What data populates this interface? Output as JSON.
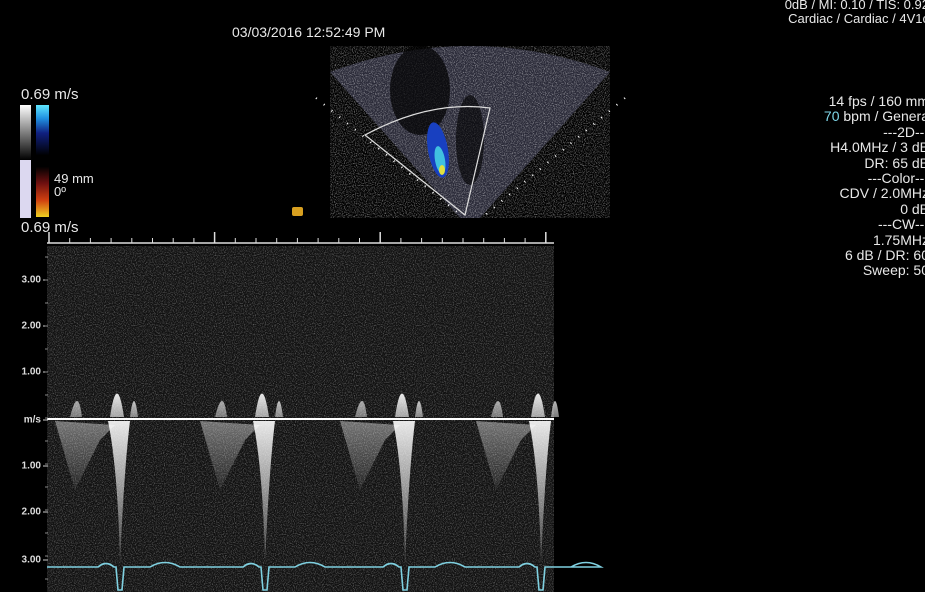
{
  "header": {
    "timestamp": "03/03/2016 12:52:49 PM",
    "system_line1": "0dB / MI: 0.10 / TIS: 0.92",
    "system_line2": "Cardiac / Cardiac / 4V1c"
  },
  "color_scale": {
    "top_label": "0.69 m/s",
    "depth": "49 mm",
    "angle": "0º",
    "bottom_label": "0.69 m/s"
  },
  "parameters": {
    "frame_rate": "14 fps / 160 mm",
    "heart_rate": 70,
    "heart_rate_unit": "bpm / Genera",
    "lines": [
      "---2D---",
      "H4.0MHz / 3 dB",
      "DR: 65 dB",
      "---Color---",
      "CDV / 2.0MHz",
      "0 dB",
      "---CW---",
      "1.75MHz",
      "6 dB / DR: 60",
      "Sweep: 50"
    ]
  },
  "spectral": {
    "axis_labels": [
      "3.00",
      "2.00",
      "1.00",
      "m/s",
      "1.00",
      "2.00",
      "3.00"
    ]
  }
}
